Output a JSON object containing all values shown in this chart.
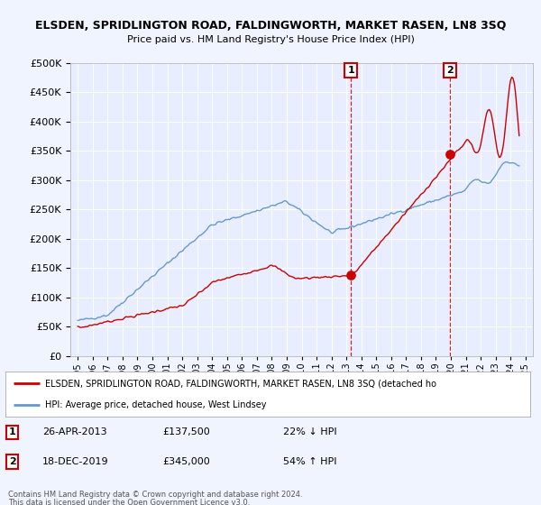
{
  "title1": "ELSDEN, SPRIDLINGTON ROAD, FALDINGWORTH, MARKET RASEN, LN8 3SQ",
  "title2": "Price paid vs. HM Land Registry's House Price Index (HPI)",
  "background_color": "#f0f4ff",
  "plot_bg_color": "#e8eeff",
  "grid_color": "#ffffff",
  "red_color": "#cc0000",
  "blue_color": "#6699cc",
  "annotation1": {
    "label": "1",
    "date": "26-APR-2013",
    "price": 137500,
    "pct": "22% ↓ HPI",
    "x_year": 2013.32
  },
  "annotation2": {
    "label": "2",
    "date": "18-DEC-2019",
    "price": 345000,
    "pct": "54% ↑ HPI",
    "x_year": 2019.96
  },
  "legend_line1": "ELSDEN, SPRIDLINGTON ROAD, FALDINGWORTH, MARKET RASEN, LN8 3SQ (detached ho",
  "legend_line2": "HPI: Average price, detached house, West Lindsey",
  "footer1": "Contains HM Land Registry data © Crown copyright and database right 2024.",
  "footer2": "This data is licensed under the Open Government Licence v3.0.",
  "ylim": [
    0,
    500000
  ],
  "yticks": [
    0,
    50000,
    100000,
    150000,
    200000,
    250000,
    300000,
    350000,
    400000,
    450000,
    500000
  ],
  "xlim_start": 1994.5,
  "xlim_end": 2025.5,
  "xticks": [
    1995,
    1996,
    1997,
    1998,
    1999,
    2000,
    2001,
    2002,
    2003,
    2004,
    2005,
    2006,
    2007,
    2008,
    2009,
    2010,
    2011,
    2012,
    2013,
    2014,
    2015,
    2016,
    2017,
    2018,
    2019,
    2020,
    2021,
    2022,
    2023,
    2024,
    2025
  ],
  "sale_years": [
    2013.32,
    2019.96
  ],
  "sale_prices": [
    137500,
    345000
  ]
}
